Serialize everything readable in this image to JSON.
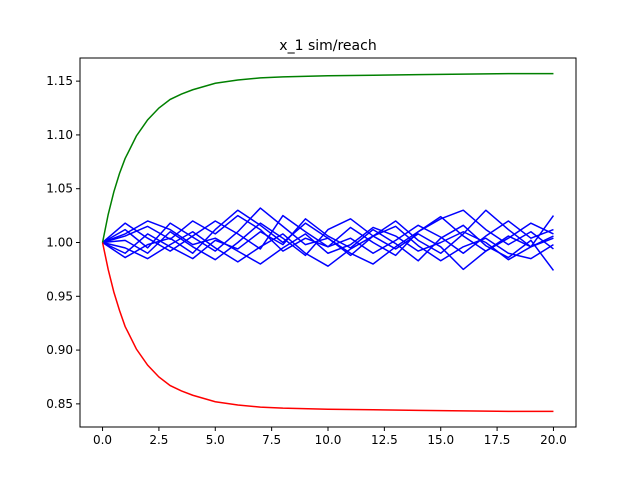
{
  "chart_data": {
    "type": "line",
    "title": "x_1 sim/reach",
    "xlabel": "",
    "ylabel": "",
    "xlim": [
      -1.0,
      21.0
    ],
    "ylim": [
      0.8285,
      1.1715
    ],
    "x_ticks": [
      0.0,
      2.5,
      5.0,
      7.5,
      10.0,
      12.5,
      15.0,
      17.5,
      20.0
    ],
    "x_tick_labels": [
      "0.0",
      "2.5",
      "5.0",
      "7.5",
      "10.0",
      "12.5",
      "15.0",
      "17.5",
      "20.0"
    ],
    "y_ticks": [
      0.85,
      0.9,
      0.95,
      1.0,
      1.05,
      1.1,
      1.15
    ],
    "y_tick_labels": [
      "0.85",
      "0.90",
      "0.95",
      "1.00",
      "1.05",
      "1.10",
      "1.15"
    ],
    "grid": false,
    "legend": "none",
    "bounds": [
      {
        "color": "#008000",
        "kind": "upper",
        "x": [
          0,
          0.25,
          0.5,
          0.75,
          1,
          1.5,
          2,
          2.5,
          3,
          3.5,
          4,
          5,
          6,
          7,
          8,
          10,
          12,
          14,
          16,
          18,
          20
        ],
        "y": [
          1.0,
          1.026,
          1.047,
          1.064,
          1.078,
          1.099,
          1.114,
          1.125,
          1.133,
          1.138,
          1.142,
          1.148,
          1.151,
          1.153,
          1.154,
          1.155,
          1.1555,
          1.156,
          1.1565,
          1.157,
          1.157
        ]
      },
      {
        "color": "#ff0000",
        "kind": "lower",
        "x": [
          0,
          0.25,
          0.5,
          0.75,
          1,
          1.5,
          2,
          2.5,
          3,
          3.5,
          4,
          5,
          6,
          7,
          8,
          10,
          12,
          14,
          16,
          18,
          20
        ],
        "y": [
          1.0,
          0.975,
          0.954,
          0.937,
          0.922,
          0.901,
          0.886,
          0.875,
          0.867,
          0.862,
          0.858,
          0.852,
          0.849,
          0.847,
          0.846,
          0.845,
          0.8445,
          0.844,
          0.8435,
          0.843,
          0.843
        ]
      }
    ],
    "simulation_color": "#0000ff",
    "simulations": {
      "x": [
        0,
        1,
        2,
        3,
        4,
        5,
        6,
        7,
        8,
        9,
        10,
        11,
        12,
        13,
        14,
        15,
        16,
        17,
        18,
        19,
        20
      ],
      "runs": [
        [
          1.0,
          1.012,
          0.995,
          1.018,
          1.005,
          0.992,
          1.01,
          1.032,
          1.015,
          0.998,
          1.004,
          0.988,
          1.006,
          1.02,
          1.002,
          0.99,
          1.008,
          1.03,
          1.012,
          0.996,
          1.025
        ],
        [
          1.0,
          0.99,
          1.008,
          0.996,
          0.985,
          1.002,
          0.994,
          1.01,
          0.998,
          1.022,
          1.006,
          0.995,
          1.012,
          0.999,
          0.983,
          1.004,
          1.016,
          0.997,
          0.986,
          1.002,
          0.974
        ],
        [
          1.0,
          1.006,
          1.015,
          1.003,
          1.02,
          1.008,
          1.025,
          1.012,
          0.992,
          1.004,
          0.996,
          1.014,
          1.0,
          0.988,
          1.01,
          1.024,
          1.006,
          0.992,
          1.004,
          1.018,
          1.008
        ],
        [
          1.0,
          0.995,
          0.985,
          0.998,
          1.01,
          0.995,
          0.982,
          0.996,
          1.008,
          0.99,
          0.978,
          0.994,
          1.006,
          1.015,
          0.997,
          0.983,
          0.996,
          1.004,
          0.99,
          0.985,
          0.998
        ],
        [
          1.0,
          1.018,
          1.004,
          0.992,
          1.006,
          1.02,
          1.008,
          0.994,
          1.025,
          1.01,
          0.996,
          1.004,
          0.99,
          1.002,
          1.016,
          1.005,
          0.99,
          1.006,
          1.02,
          1.004,
          1.012
        ],
        [
          1.0,
          1.002,
          0.99,
          1.01,
          0.996,
          0.984,
          1.0,
          1.018,
          1.004,
          0.988,
          1.012,
          1.022,
          1.006,
          0.994,
          1.008,
          0.996,
          0.975,
          0.992,
          1.006,
          0.996,
          1.004
        ],
        [
          1.0,
          0.986,
          0.998,
          1.004,
          0.99,
          1.012,
          1.03,
          1.016,
          1.0,
          1.018,
          1.004,
          0.99,
          0.98,
          0.996,
          1.01,
          1.022,
          1.03,
          1.012,
          0.998,
          1.01,
          0.994
        ],
        [
          1.0,
          1.008,
          1.02,
          1.012,
          0.998,
          1.004,
          0.992,
          0.98,
          0.995,
          1.008,
          0.99,
          0.998,
          1.014,
          1.006,
          0.992,
          1.0,
          1.01,
          1.0,
          0.984,
          0.996,
          1.006
        ]
      ]
    }
  }
}
